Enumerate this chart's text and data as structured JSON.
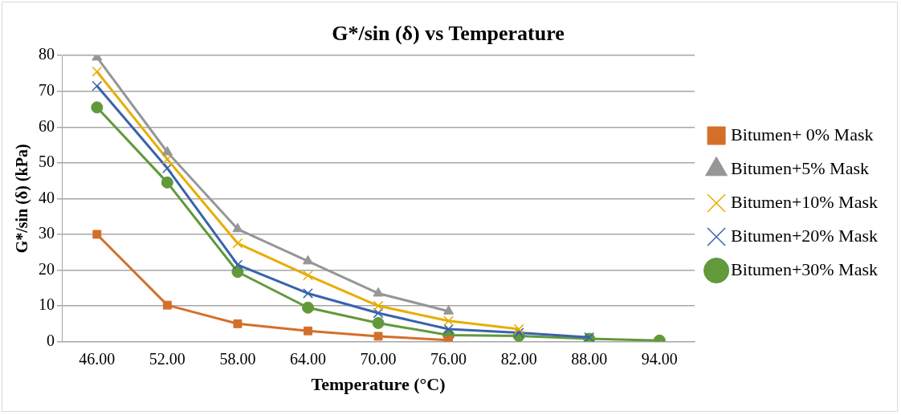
{
  "chart_data": {
    "type": "line",
    "title": "G*/sin (δ) vs Temperature",
    "xlabel": "Temperature (°C)",
    "ylabel": "G*/sin (δ) (kPa)",
    "categories": [
      "46.00",
      "52.00",
      "58.00",
      "64.00",
      "70.00",
      "76.00",
      "82.00",
      "88.00",
      "94.00"
    ],
    "series": [
      {
        "name": "Bitumen+ 0% Mask",
        "color": "#d46f2a",
        "marker": "square",
        "values": [
          30,
          10.2,
          5,
          3,
          1.5,
          0.4,
          null,
          null,
          null
        ]
      },
      {
        "name": "Bitumen+5% Mask",
        "color": "#969696",
        "marker": "triangle",
        "values": [
          79.5,
          53,
          31.5,
          22.5,
          13.5,
          8.5,
          null,
          null,
          null
        ]
      },
      {
        "name": "Bitumen+10% Mask",
        "color": "#e8ad00",
        "marker": "cross",
        "values": [
          75.5,
          51,
          27.5,
          18.5,
          10,
          5.8,
          3.5,
          null,
          null
        ]
      },
      {
        "name": "Bitumen+20% Mask",
        "color": "#3a62ad",
        "marker": "cross",
        "values": [
          71.5,
          48.5,
          21.5,
          13.5,
          8,
          3.5,
          2.5,
          1.2,
          null
        ]
      },
      {
        "name": "Bitumen+30% Mask",
        "color": "#61993b",
        "marker": "circle",
        "values": [
          65.5,
          44.5,
          19.5,
          9.5,
          5.2,
          1.8,
          1.6,
          0.8,
          0.3
        ]
      }
    ],
    "ylim": [
      0,
      80
    ],
    "yticks": [
      0,
      10,
      20,
      30,
      40,
      50,
      60,
      70,
      80
    ],
    "grid": "y",
    "legend": "right",
    "line_style": "solid"
  }
}
